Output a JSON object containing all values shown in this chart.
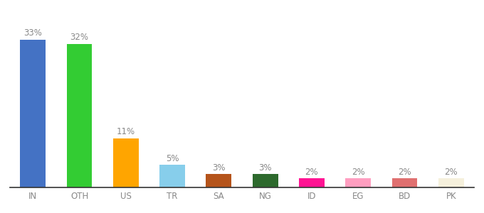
{
  "categories": [
    "IN",
    "OTH",
    "US",
    "TR",
    "SA",
    "NG",
    "ID",
    "EG",
    "BD",
    "PK"
  ],
  "values": [
    33,
    32,
    11,
    5,
    3,
    3,
    2,
    2,
    2,
    2
  ],
  "labels": [
    "33%",
    "32%",
    "11%",
    "5%",
    "3%",
    "3%",
    "2%",
    "2%",
    "2%",
    "2%"
  ],
  "colors": [
    "#4472C4",
    "#33CC33",
    "#FFA500",
    "#87CEEB",
    "#B5541B",
    "#2D6A2D",
    "#FF1493",
    "#FF9EC0",
    "#E07070",
    "#F5F0DC"
  ],
  "ylim": [
    0,
    38
  ],
  "xlim": [
    -0.5,
    9.5
  ],
  "bar_width": 0.55,
  "background_color": "#ffffff",
  "label_fontsize": 8.5,
  "tick_fontsize": 8.5,
  "label_color": "#888888",
  "tick_color": "#888888",
  "bottom_spine_color": "#333333"
}
